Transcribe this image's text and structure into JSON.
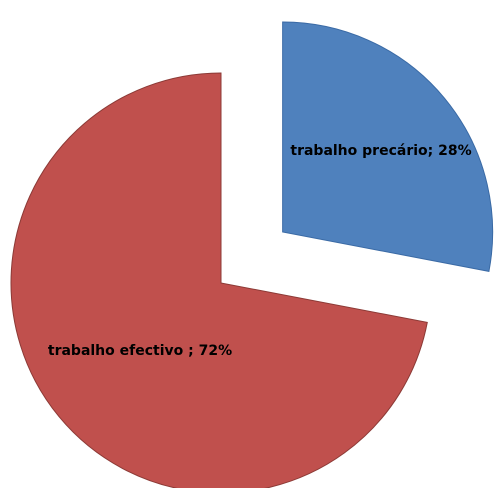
{
  "chart_data": {
    "type": "pie",
    "exploded": true,
    "start_angle": "12 o'clock",
    "direction": "clockwise",
    "categories": [
      "trabalho precário",
      "trabalho efectivo "
    ],
    "values": [
      28,
      72
    ],
    "labels": [
      "trabalho precário; 28%",
      "trabalho efectivo ; 72%"
    ],
    "colors": [
      "#4f81bd",
      "#c0504d"
    ],
    "edge_colors": [
      "#3a6aa5",
      "#8c3a36"
    ]
  }
}
